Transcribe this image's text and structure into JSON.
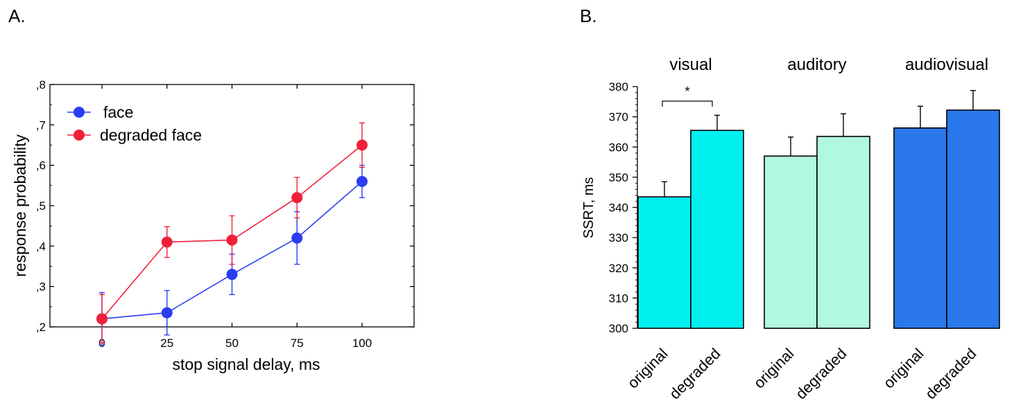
{
  "chart_data": [
    {
      "panel_label": "A.",
      "type": "line",
      "xlabel": "stop signal delay, ms",
      "ylabel": "response probability",
      "x": [
        0,
        25,
        50,
        75,
        100
      ],
      "xlim": [
        -20,
        120
      ],
      "ylim": [
        0.2,
        0.8
      ],
      "x_ticks": [
        "0",
        "25",
        "50",
        "75",
        "100"
      ],
      "y_ticks": [
        ",2",
        ",3",
        ",4",
        ",5",
        ",6",
        ",7",
        ",8"
      ],
      "legend": "top-left",
      "grid": false,
      "series": [
        {
          "name": "face",
          "color": "#2a3df2",
          "values": [
            0.22,
            0.235,
            0.33,
            0.42,
            0.56
          ],
          "errors": [
            0.065,
            0.055,
            0.05,
            0.065,
            0.04
          ]
        },
        {
          "name": "degraded face",
          "color": "#f0203a",
          "values": [
            0.22,
            0.41,
            0.415,
            0.52,
            0.65
          ],
          "errors": [
            0.06,
            0.038,
            0.06,
            0.05,
            0.055
          ]
        }
      ]
    },
    {
      "panel_label": "B.",
      "type": "bar",
      "ylabel": "SSRT, ms",
      "ylim": [
        300,
        380
      ],
      "y_ticks": [
        "300",
        "310",
        "320",
        "330",
        "340",
        "350",
        "360",
        "370",
        "380"
      ],
      "grid": false,
      "groups": [
        {
          "name": "visual",
          "color": "#00f0f0",
          "bars": [
            {
              "label": "original",
              "value": 343.5,
              "error": 5
            },
            {
              "label": "degraded",
              "value": 365.5,
              "error": 5
            }
          ]
        },
        {
          "name": "auditory",
          "color": "#b0f8e0",
          "bars": [
            {
              "label": "original",
              "value": 357,
              "error": 6.3
            },
            {
              "label": "degraded",
              "value": 363.5,
              "error": 7.5
            }
          ]
        },
        {
          "name": "audiovisual",
          "color": "#2a78ec",
          "bars": [
            {
              "label": "original",
              "value": 366.3,
              "error": 7.2
            },
            {
              "label": "degraded",
              "value": 372.2,
              "error": 6.5
            }
          ]
        }
      ],
      "annotations": [
        {
          "text": "*",
          "group": "visual"
        }
      ]
    }
  ]
}
